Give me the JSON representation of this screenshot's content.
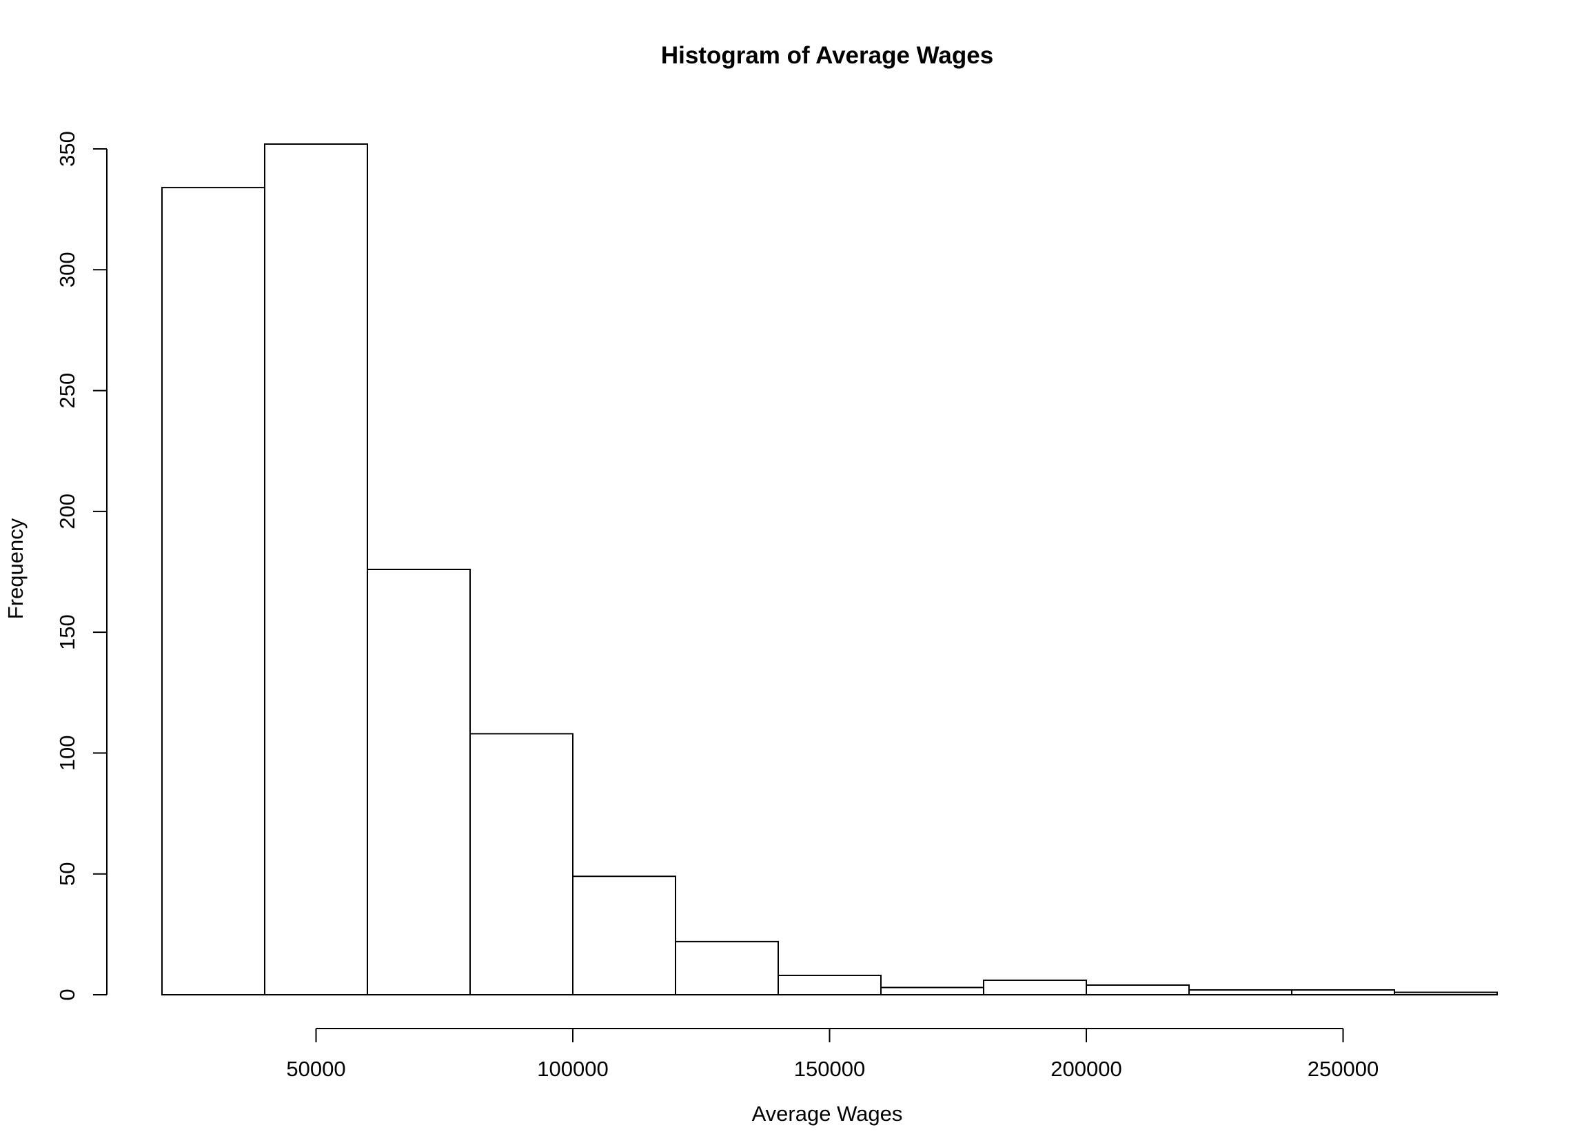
{
  "chart_data": {
    "type": "bar",
    "title": "Histogram of Average Wages",
    "xlabel": "Average Wages",
    "ylabel": "Frequency",
    "bins": [
      {
        "from": 20000,
        "to": 40000,
        "count": 334
      },
      {
        "from": 40000,
        "to": 60000,
        "count": 352
      },
      {
        "from": 60000,
        "to": 80000,
        "count": 176
      },
      {
        "from": 80000,
        "to": 100000,
        "count": 108
      },
      {
        "from": 100000,
        "to": 120000,
        "count": 49
      },
      {
        "from": 120000,
        "to": 140000,
        "count": 22
      },
      {
        "from": 140000,
        "to": 160000,
        "count": 8
      },
      {
        "from": 160000,
        "to": 180000,
        "count": 3
      },
      {
        "from": 180000,
        "to": 200000,
        "count": 6
      },
      {
        "from": 200000,
        "to": 220000,
        "count": 4
      },
      {
        "from": 220000,
        "to": 240000,
        "count": 2
      },
      {
        "from": 240000,
        "to": 260000,
        "count": 2
      },
      {
        "from": 260000,
        "to": 280000,
        "count": 1
      }
    ],
    "xticks": [
      50000,
      100000,
      150000,
      200000,
      250000
    ],
    "xtick_labels": [
      "50000",
      "100000",
      "150000",
      "200000",
      "250000"
    ],
    "yticks": [
      0,
      50,
      100,
      150,
      200,
      250,
      300,
      350
    ],
    "ytick_labels": [
      "0",
      "50",
      "100",
      "150",
      "200",
      "250",
      "300",
      "350"
    ],
    "xlim": [
      20000,
      280000
    ],
    "ylim": [
      0,
      352
    ],
    "grid": false,
    "legend": "none",
    "bar_fill": "#ffffff",
    "bar_stroke": "#000000"
  }
}
